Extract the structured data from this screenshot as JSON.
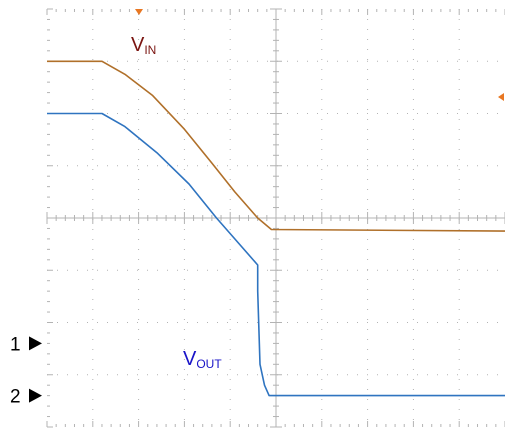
{
  "colors": {
    "grid": "#b3b3b3",
    "vin": "#b0702a",
    "vout": "#2f74c0",
    "vin_label": "#7a1410",
    "vout_label": "#1a14c8",
    "marker": "#000000",
    "trigger": "#e87722"
  },
  "chart_data": {
    "type": "line",
    "title": "",
    "xlabel": "",
    "ylabel": "",
    "grid": true,
    "x_divisions": 10,
    "y_divisions": 8,
    "xlim": [
      0,
      10
    ],
    "ylim": [
      0,
      8
    ],
    "series": [
      {
        "name": "VIN",
        "label_main": "V",
        "label_sub": "IN",
        "x": [
          0,
          1.2,
          1.7,
          2.3,
          3.0,
          3.6,
          4.1,
          4.6,
          4.9,
          10
        ],
        "y": [
          7.0,
          7.0,
          6.75,
          6.35,
          5.7,
          5.05,
          4.5,
          4.0,
          3.78,
          3.75
        ]
      },
      {
        "name": "VOUT",
        "label_main": "V",
        "label_sub": "OUT",
        "x": [
          0,
          1.2,
          1.7,
          2.4,
          3.1,
          3.7,
          4.2,
          4.6,
          4.6,
          4.65,
          4.75,
          4.85,
          5.0,
          10
        ],
        "y": [
          6.0,
          6.0,
          5.75,
          5.25,
          4.65,
          4.0,
          3.5,
          3.1,
          2.6,
          1.2,
          0.8,
          0.6,
          0.6,
          0.6
        ]
      }
    ],
    "channel_markers": [
      {
        "label": "1",
        "level": 1.6
      },
      {
        "label": "2",
        "level": 0.6
      }
    ]
  }
}
